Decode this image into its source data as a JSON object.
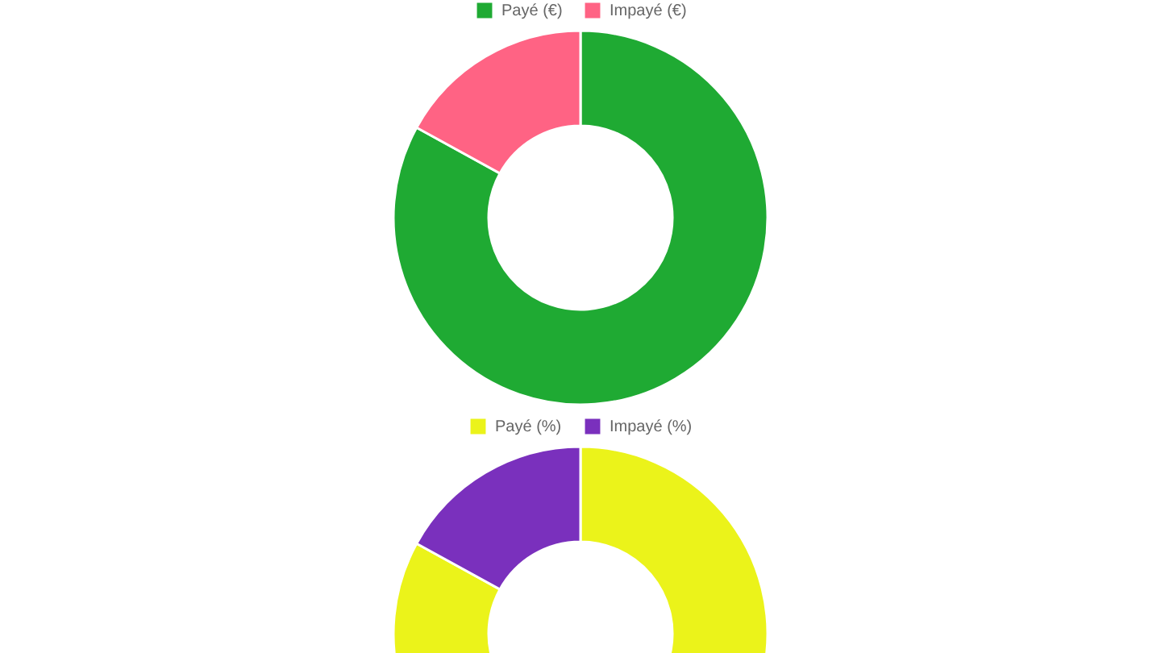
{
  "chart_data": [
    {
      "type": "donut",
      "categories": [
        "Payé (€)",
        "Impayé (€)"
      ],
      "values": [
        83,
        17
      ],
      "colors": [
        "#1faa33",
        "#ff6384"
      ],
      "legend": "top"
    },
    {
      "type": "donut",
      "categories": [
        "Payé (%)",
        "Impayé (%)"
      ],
      "values": [
        83,
        17
      ],
      "colors": [
        "#ebf31a",
        "#7a30bd"
      ],
      "legend": "top"
    }
  ]
}
